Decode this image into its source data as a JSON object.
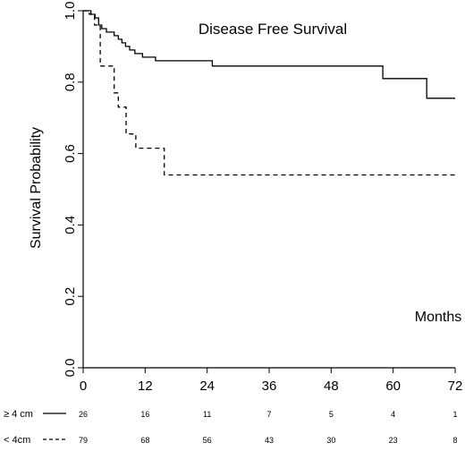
{
  "chart_data": {
    "type": "line",
    "title": "Disease Free Survival",
    "xlabel": "Months",
    "ylabel": "Survival Probability",
    "xlim": [
      0,
      72
    ],
    "ylim": [
      0,
      1.0
    ],
    "x_ticks": [
      0,
      12,
      24,
      36,
      48,
      60,
      72
    ],
    "x_tick_labels": [
      "0",
      "12",
      "24",
      "36",
      "48",
      "60",
      "72"
    ],
    "y_ticks": [
      0,
      0.2,
      0.4,
      0.6,
      0.8,
      1.0
    ],
    "y_tick_labels": [
      "0.0",
      "0.2",
      "0.4",
      "0.6",
      "0.8",
      "1.0"
    ],
    "grid": false,
    "series": [
      {
        "name": "≥ 4 cm",
        "line_style": "solid",
        "step_points": [
          [
            0,
            1.0
          ],
          [
            1.5,
            0.99
          ],
          [
            2.3,
            0.98
          ],
          [
            3.0,
            0.96
          ],
          [
            3.6,
            0.95
          ],
          [
            4.5,
            0.94
          ],
          [
            6.0,
            0.93
          ],
          [
            6.8,
            0.92
          ],
          [
            7.5,
            0.91
          ],
          [
            8.2,
            0.9
          ],
          [
            9.0,
            0.89
          ],
          [
            10.0,
            0.88
          ],
          [
            11.5,
            0.87
          ],
          [
            14.0,
            0.86
          ],
          [
            25.0,
            0.845
          ],
          [
            58.0,
            0.81
          ],
          [
            66.5,
            0.755
          ],
          [
            72.0,
            0.755
          ]
        ]
      },
      {
        "name": "< 4cm",
        "line_style": "dashed",
        "step_points": [
          [
            0,
            1.0
          ],
          [
            1.2,
            0.99
          ],
          [
            2.2,
            0.96
          ],
          [
            3.3,
            0.845
          ],
          [
            6.0,
            0.77
          ],
          [
            6.8,
            0.73
          ],
          [
            8.3,
            0.655
          ],
          [
            10.2,
            0.615
          ],
          [
            15.7,
            0.54
          ],
          [
            72.0,
            0.54
          ]
        ]
      }
    ],
    "at_risk": {
      "rows": [
        {
          "label": "≥ 4 cm",
          "counts": [
            "26",
            "16",
            "11",
            "7",
            "5",
            "4",
            "1"
          ]
        },
        {
          "label": "< 4cm",
          "counts": [
            "79",
            "68",
            "56",
            "43",
            "30",
            "23",
            "8"
          ]
        }
      ]
    }
  }
}
